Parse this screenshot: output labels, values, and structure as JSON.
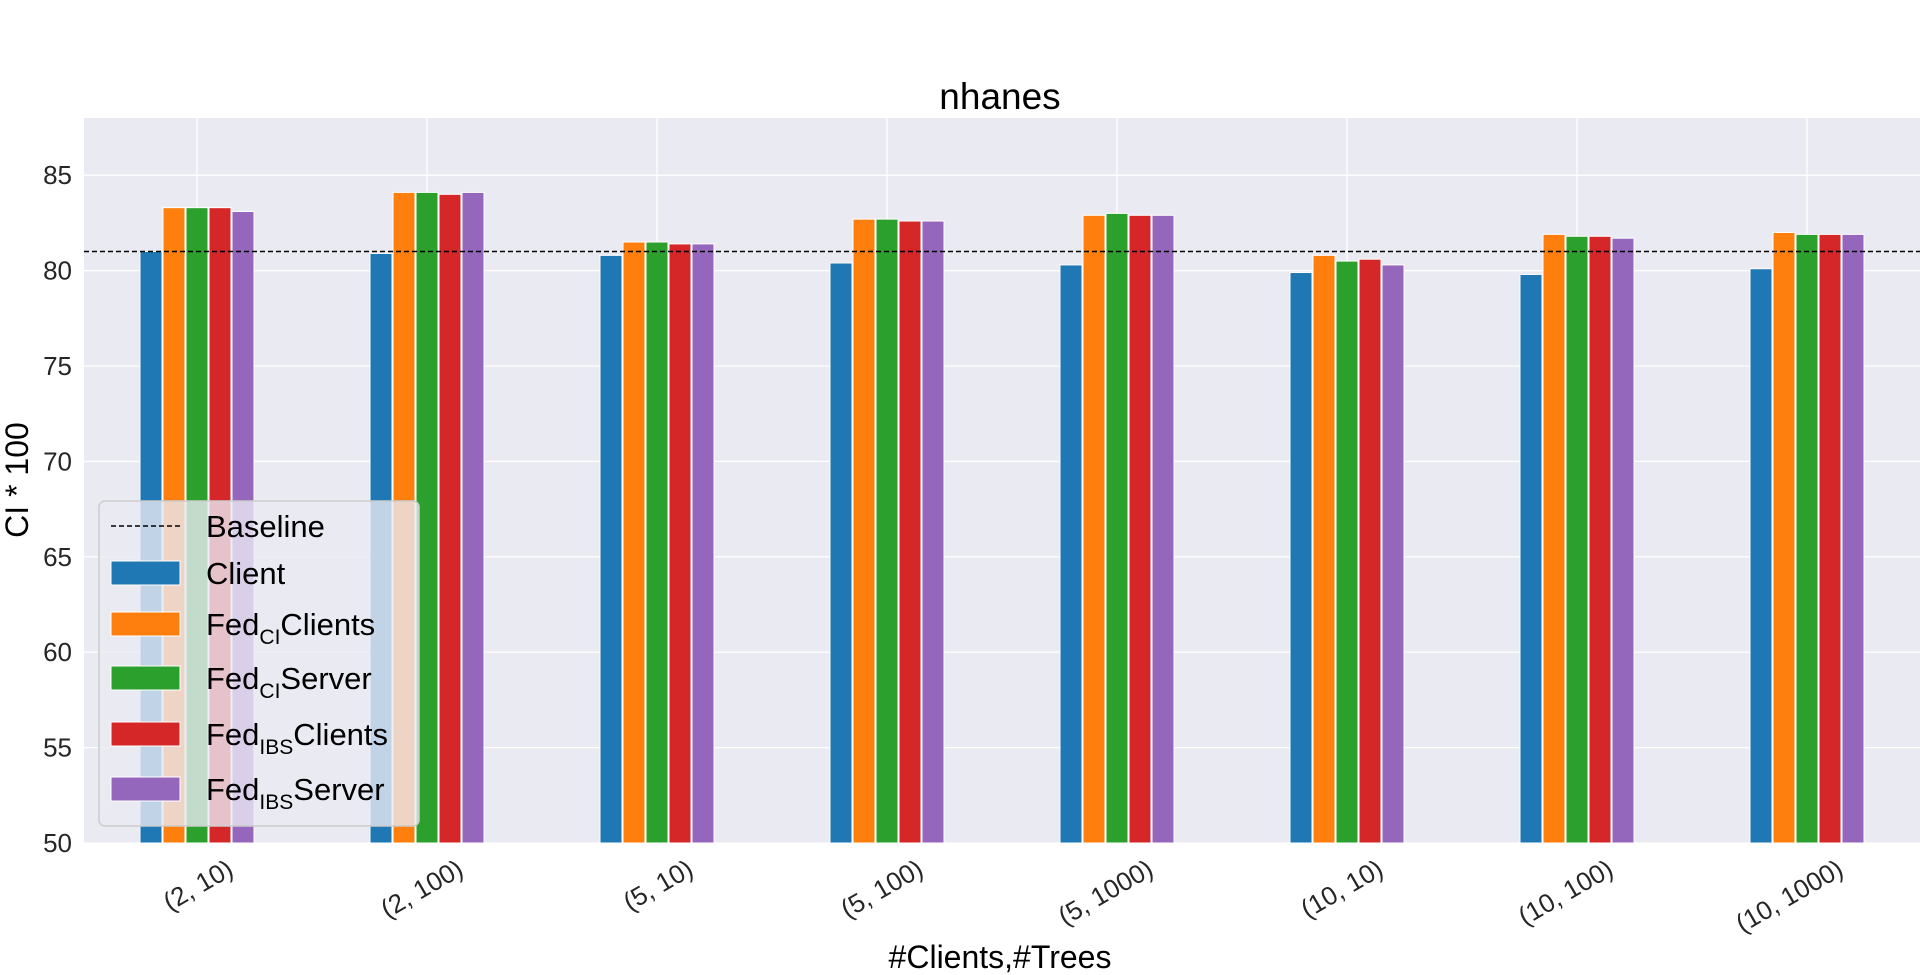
{
  "chart_data": {
    "type": "bar",
    "title": "nhanes",
    "xlabel": "#Clients,#Trees",
    "ylabel": "CI * 100",
    "ylim": [
      50,
      88
    ],
    "yticks": [
      "50",
      "55",
      "60",
      "65",
      "70",
      "75",
      "80",
      "85"
    ],
    "grid": true,
    "legend_position": "lower-left",
    "categories": [
      "(2, 10)",
      "(2, 100)",
      "(5, 10)",
      "(5, 100)",
      "(5, 1000)",
      "(10, 10)",
      "(10, 100)",
      "(10, 1000)"
    ],
    "baseline": {
      "label": "Baseline",
      "value": 81.0
    },
    "series": [
      {
        "name": "Client",
        "legend_main": "Client",
        "legend_sub": "",
        "legend_tail": "",
        "color": "#1f77b4",
        "values": [
          81.0,
          80.9,
          80.8,
          80.4,
          80.3,
          79.9,
          79.8,
          80.1
        ]
      },
      {
        "name": "FedCIClients",
        "legend_main": "Fed",
        "legend_sub": "CI",
        "legend_tail": "Clients",
        "color": "#ff7f0e",
        "values": [
          83.3,
          84.1,
          81.5,
          82.7,
          82.9,
          80.8,
          81.9,
          82.0
        ]
      },
      {
        "name": "FedCIServer",
        "legend_main": "Fed",
        "legend_sub": "CI",
        "legend_tail": "Server",
        "color": "#2ca02c",
        "values": [
          83.3,
          84.1,
          81.5,
          82.7,
          83.0,
          80.5,
          81.8,
          81.9
        ]
      },
      {
        "name": "FedIBSClients",
        "legend_main": "Fed",
        "legend_sub": "IBS",
        "legend_tail": "Clients",
        "color": "#d62728",
        "values": [
          83.3,
          84.0,
          81.4,
          82.6,
          82.9,
          80.6,
          81.8,
          81.9
        ]
      },
      {
        "name": "FedIBSServer",
        "legend_main": "Fed",
        "legend_sub": "IBS",
        "legend_tail": "Server",
        "color": "#9467bd",
        "values": [
          83.1,
          84.1,
          81.4,
          82.6,
          82.9,
          80.3,
          81.7,
          81.9
        ]
      }
    ]
  }
}
